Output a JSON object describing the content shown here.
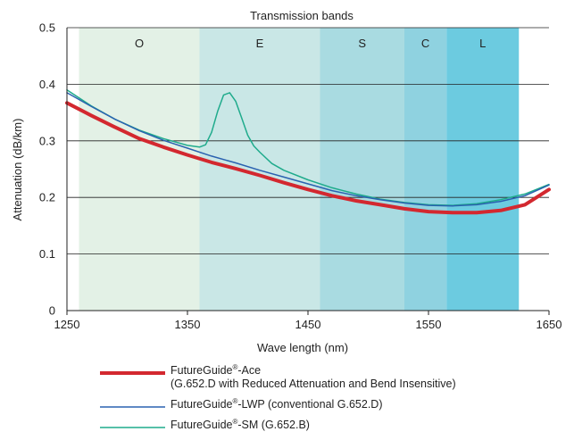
{
  "chart_data": {
    "type": "line",
    "top_label": "Transmission bands",
    "xlabel": "Wave length (nm)",
    "ylabel": "Attenuation (dB/km)",
    "xlim": [
      1250,
      1650
    ],
    "ylim": [
      0,
      0.5
    ],
    "x_ticks": [
      "1250",
      "1350",
      "1450",
      "1550",
      "1650"
    ],
    "x_tick_values": [
      1250,
      1350,
      1450,
      1550,
      1650
    ],
    "y_ticks": [
      "0",
      "0.1",
      "0.2",
      "0.3",
      "0.4",
      "0.5"
    ],
    "y_tick_values": [
      0,
      0.1,
      0.2,
      0.3,
      0.4,
      0.5
    ],
    "grid": "horizontal",
    "bands": [
      {
        "label": "O",
        "start": 1260,
        "end": 1360,
        "color": "#e3f1e6"
      },
      {
        "label": "E",
        "start": 1360,
        "end": 1460,
        "color": "#c9e7e6"
      },
      {
        "label": "S",
        "start": 1460,
        "end": 1530,
        "color": "#a9dbe1"
      },
      {
        "label": "C",
        "start": 1530,
        "end": 1565,
        "color": "#8fd2e0"
      },
      {
        "label": "L",
        "start": 1565,
        "end": 1625,
        "color": "#6ccbe0"
      }
    ],
    "series": [
      {
        "name": "FutureGuide",
        "sup": "®",
        "suffix": "-Ace",
        "subline": "(G.652.D with Reduced Attenuation and Bend Insensitive)",
        "color": "#d3282f",
        "width": 4,
        "points": [
          [
            1250,
            0.367
          ],
          [
            1270,
            0.345
          ],
          [
            1290,
            0.324
          ],
          [
            1310,
            0.304
          ],
          [
            1330,
            0.289
          ],
          [
            1350,
            0.275
          ],
          [
            1370,
            0.262
          ],
          [
            1390,
            0.251
          ],
          [
            1410,
            0.239
          ],
          [
            1430,
            0.226
          ],
          [
            1450,
            0.214
          ],
          [
            1470,
            0.203
          ],
          [
            1490,
            0.194
          ],
          [
            1510,
            0.187
          ],
          [
            1530,
            0.18
          ],
          [
            1550,
            0.175
          ],
          [
            1570,
            0.173
          ],
          [
            1590,
            0.173
          ],
          [
            1610,
            0.177
          ],
          [
            1630,
            0.187
          ],
          [
            1650,
            0.214
          ]
        ]
      },
      {
        "name": "FutureGuide",
        "sup": "®",
        "suffix": "-LWP (conventional G.652.D)",
        "subline": "",
        "color": "#2a62b0",
        "width": 1.5,
        "points": [
          [
            1250,
            0.385
          ],
          [
            1270,
            0.361
          ],
          [
            1290,
            0.338
          ],
          [
            1310,
            0.318
          ],
          [
            1330,
            0.301
          ],
          [
            1350,
            0.287
          ],
          [
            1370,
            0.273
          ],
          [
            1390,
            0.261
          ],
          [
            1410,
            0.248
          ],
          [
            1430,
            0.236
          ],
          [
            1450,
            0.224
          ],
          [
            1470,
            0.212
          ],
          [
            1490,
            0.203
          ],
          [
            1510,
            0.196
          ],
          [
            1530,
            0.19
          ],
          [
            1550,
            0.186
          ],
          [
            1570,
            0.185
          ],
          [
            1590,
            0.187
          ],
          [
            1610,
            0.193
          ],
          [
            1630,
            0.203
          ],
          [
            1650,
            0.222
          ]
        ]
      },
      {
        "name": "FutureGuide",
        "sup": "®",
        "suffix": "-SM (G.652.B)",
        "subline": "",
        "color": "#1fab8c",
        "width": 1.5,
        "points": [
          [
            1250,
            0.39
          ],
          [
            1270,
            0.362
          ],
          [
            1290,
            0.338
          ],
          [
            1310,
            0.319
          ],
          [
            1330,
            0.304
          ],
          [
            1350,
            0.292
          ],
          [
            1360,
            0.289
          ],
          [
            1365,
            0.293
          ],
          [
            1370,
            0.315
          ],
          [
            1375,
            0.352
          ],
          [
            1380,
            0.381
          ],
          [
            1385,
            0.385
          ],
          [
            1390,
            0.37
          ],
          [
            1395,
            0.34
          ],
          [
            1400,
            0.31
          ],
          [
            1405,
            0.291
          ],
          [
            1410,
            0.28
          ],
          [
            1420,
            0.26
          ],
          [
            1430,
            0.248
          ],
          [
            1450,
            0.231
          ],
          [
            1470,
            0.217
          ],
          [
            1490,
            0.206
          ],
          [
            1510,
            0.197
          ],
          [
            1530,
            0.191
          ],
          [
            1550,
            0.187
          ],
          [
            1570,
            0.186
          ],
          [
            1590,
            0.189
          ],
          [
            1610,
            0.196
          ],
          [
            1630,
            0.206
          ],
          [
            1650,
            0.223
          ]
        ]
      }
    ]
  }
}
